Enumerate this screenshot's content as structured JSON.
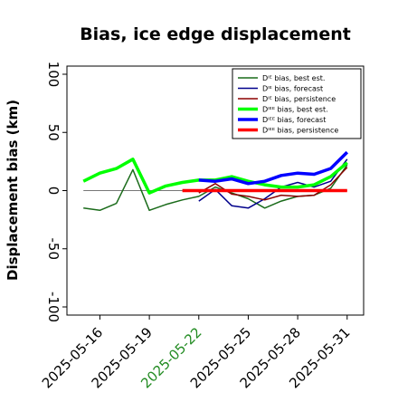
{
  "chart_data": {
    "type": "line",
    "title": "Bias, ice edge displacement",
    "xlabel": "",
    "ylabel": "Displacement bias (km)",
    "ylim": [
      -107,
      107
    ],
    "xlim": [
      "2025-05-14",
      "2025-06-01"
    ],
    "yticks": [
      -100,
      -50,
      0,
      50,
      100
    ],
    "xticks": [
      "2025-05-16",
      "2025-05-19",
      "2025-05-22",
      "2025-05-25",
      "2025-05-28",
      "2025-05-31"
    ],
    "highlighted_tick": "2025-05-22",
    "highlight_color": "#228b22",
    "zero_line": true,
    "grid": false,
    "legend_position": "top-right",
    "series": [
      {
        "name": "Dᴵᴱ bias, best est.",
        "color": "#1a6b1a",
        "width": 1.5,
        "x": [
          "2025-05-15",
          "2025-05-16",
          "2025-05-17",
          "2025-05-18",
          "2025-05-19",
          "2025-05-20",
          "2025-05-21",
          "2025-05-22",
          "2025-05-23",
          "2025-05-24",
          "2025-05-25",
          "2025-05-26",
          "2025-05-27",
          "2025-05-28",
          "2025-05-29",
          "2025-05-30",
          "2025-05-31"
        ],
        "y": [
          -15,
          -17,
          -11,
          18,
          -17,
          -12,
          -8,
          -5,
          3,
          -2,
          -7,
          -15,
          -9,
          -5,
          -4,
          2,
          22
        ]
      },
      {
        "name": "Dᴵᴱ bias, forecast",
        "color": "#00008b",
        "width": 1.5,
        "x": [
          "2025-05-22",
          "2025-05-23",
          "2025-05-24",
          "2025-05-25",
          "2025-05-26",
          "2025-05-27",
          "2025-05-28",
          "2025-05-29",
          "2025-05-30",
          "2025-05-31"
        ],
        "y": [
          -9,
          1,
          -13,
          -15,
          -7,
          3,
          7,
          3,
          8,
          27
        ]
      },
      {
        "name": "Dᴵᴱ bias, persistence",
        "color": "#8b0000",
        "width": 1.5,
        "x": [
          "2025-05-22",
          "2025-05-23",
          "2025-05-24",
          "2025-05-25",
          "2025-05-26",
          "2025-05-27",
          "2025-05-28",
          "2025-05-29",
          "2025-05-30",
          "2025-05-31"
        ],
        "y": [
          -2,
          6,
          -3,
          -5,
          -8,
          -4,
          -5,
          -4,
          5,
          20
        ]
      },
      {
        "name": "Dᴵᴱᴱ bias, best est.",
        "color": "#00ff00",
        "width": 3.5,
        "x": [
          "2025-05-15",
          "2025-05-16",
          "2025-05-17",
          "2025-05-18",
          "2025-05-19",
          "2025-05-20",
          "2025-05-21",
          "2025-05-22",
          "2025-05-23",
          "2025-05-24",
          "2025-05-25",
          "2025-05-26",
          "2025-05-27",
          "2025-05-28",
          "2025-05-29",
          "2025-05-30",
          "2025-05-31"
        ],
        "y": [
          8,
          15,
          19,
          27,
          -2,
          4,
          7,
          9,
          9,
          12,
          8,
          5,
          3,
          3,
          5,
          12,
          24
        ]
      },
      {
        "name": "Dᴵᴱᴱ bias, forecast",
        "color": "#0000ff",
        "width": 3.5,
        "x": [
          "2025-05-22",
          "2025-05-23",
          "2025-05-24",
          "2025-05-25",
          "2025-05-26",
          "2025-05-27",
          "2025-05-28",
          "2025-05-29",
          "2025-05-30",
          "2025-05-31"
        ],
        "y": [
          9,
          8,
          10,
          6,
          8,
          13,
          15,
          14,
          19,
          33
        ]
      },
      {
        "name": "Dᴵᴱᴱ bias, persistence",
        "color": "#ff0000",
        "width": 3.5,
        "x": [
          "2025-05-21",
          "2025-05-22",
          "2025-05-23",
          "2025-05-24",
          "2025-05-25",
          "2025-05-26",
          "2025-05-27",
          "2025-05-28",
          "2025-05-29",
          "2025-05-30",
          "2025-05-31"
        ],
        "y": [
          0,
          0,
          0,
          0,
          0,
          0,
          0,
          0,
          0,
          0,
          0
        ]
      }
    ]
  }
}
